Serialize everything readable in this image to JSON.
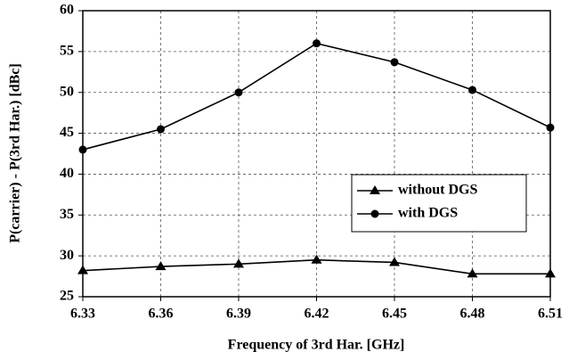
{
  "chart_data": {
    "type": "line",
    "x_label": "Frequency of 3rd Har. [GHz]",
    "y_label": "P(carrier) - P(3rd Har.) [dBc]",
    "x": [
      6.33,
      6.36,
      6.39,
      6.42,
      6.45,
      6.48,
      6.51
    ],
    "series": [
      {
        "name": "without DGS",
        "color": "#000000",
        "marker": "triangle",
        "values": [
          28.2,
          28.7,
          29.0,
          29.5,
          29.2,
          27.8,
          27.8
        ]
      },
      {
        "name": "with DGS",
        "color": "#000000",
        "marker": "circle",
        "values": [
          43.0,
          45.5,
          50.0,
          56.0,
          53.7,
          50.3,
          45.7
        ]
      }
    ],
    "xlim": [
      6.33,
      6.51
    ],
    "xticks": [
      6.33,
      6.36,
      6.39,
      6.42,
      6.45,
      6.48,
      6.51
    ],
    "ylim": [
      25,
      60
    ],
    "yticks": [
      25,
      30,
      35,
      40,
      45,
      50,
      55,
      60
    ],
    "grid": true,
    "legend": "right"
  }
}
